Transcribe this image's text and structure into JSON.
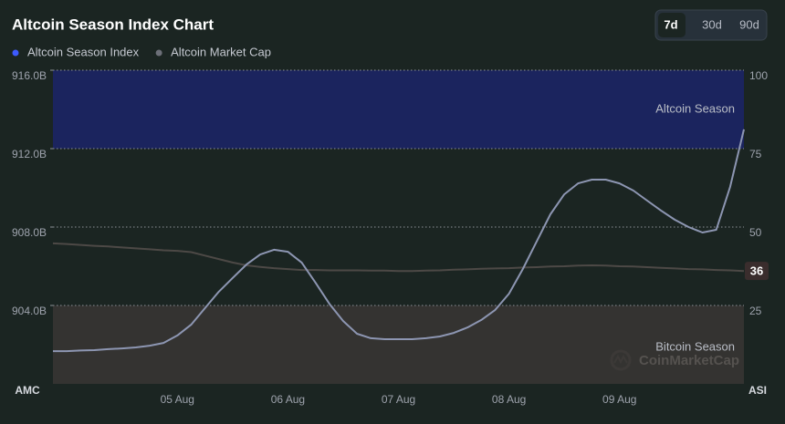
{
  "chart_data": {
    "type": "line",
    "title": "Altcoin Season Index Chart",
    "buttons": [
      "7d",
      "30d",
      "90d"
    ],
    "active_button": 0,
    "y_label": "AMC",
    "y2_label": "ASI",
    "watermark": "CoinMarketCap",
    "categories": [
      null,
      null,
      null,
      null,
      null,
      null,
      null,
      null,
      null,
      "05 Aug",
      null,
      null,
      null,
      null,
      null,
      null,
      null,
      "06 Aug",
      null,
      null,
      null,
      null,
      null,
      null,
      null,
      "07 Aug",
      null,
      null,
      null,
      null,
      null,
      null,
      null,
      "08 Aug",
      null,
      null,
      null,
      null,
      null,
      null,
      null,
      "09 Aug",
      null,
      null,
      null,
      null,
      null,
      null,
      null,
      null,
      null
    ],
    "ylim": [
      900,
      916
    ],
    "yticks": [
      {
        "value": 904,
        "label": "904.0B"
      },
      {
        "value": 908,
        "label": "908.0B"
      },
      {
        "value": 912,
        "label": "912.0B"
      },
      {
        "value": 916,
        "label": "916.0B"
      }
    ],
    "y2lim": [
      0,
      100
    ],
    "y2ticks": [
      25,
      50,
      75,
      100
    ],
    "grid": true,
    "bands": [
      {
        "label": "Altcoin Season",
        "from": 75,
        "to": 100,
        "color": "#1b2468"
      },
      {
        "label": "Bitcoin Season",
        "from": 0,
        "to": 25,
        "color": "#383634"
      }
    ],
    "series": [
      {
        "name": "Altcoin Season Index",
        "color": "#4d4946",
        "marker_color": "#3d5afe",
        "axis": "y2",
        "values": [
          44.8,
          44.6,
          44.3,
          44.0,
          43.8,
          43.5,
          43.2,
          42.9,
          42.6,
          42.4,
          42.0,
          40.9,
          39.8,
          38.7,
          37.8,
          37.3,
          36.9,
          36.6,
          36.3,
          36.3,
          36.2,
          36.2,
          36.2,
          36.1,
          36.1,
          36.0,
          36.0,
          36.1,
          36.2,
          36.4,
          36.5,
          36.7,
          36.8,
          36.9,
          37.1,
          37.2,
          37.4,
          37.5,
          37.7,
          37.8,
          37.7,
          37.5,
          37.4,
          37.2,
          37.0,
          36.8,
          36.6,
          36.5,
          36.3,
          36.2,
          36
        ]
      },
      {
        "name": "Altcoin Market Cap",
        "color": "#8d96b2",
        "marker_color": "#6c6f78",
        "values": [
          901.67,
          901.67,
          901.7,
          901.72,
          901.77,
          901.81,
          901.86,
          901.95,
          902.09,
          902.47,
          903.02,
          903.86,
          904.7,
          905.4,
          906.09,
          906.6,
          906.84,
          906.74,
          906.19,
          905.16,
          904.09,
          903.21,
          902.56,
          902.33,
          902.28,
          902.28,
          902.28,
          902.33,
          902.42,
          902.6,
          902.88,
          903.26,
          903.77,
          904.6,
          905.86,
          907.26,
          908.65,
          909.67,
          910.23,
          910.42,
          910.42,
          910.23,
          909.86,
          909.35,
          908.84,
          908.37,
          908.0,
          907.72,
          907.86,
          910.05,
          912.98
        ]
      }
    ]
  }
}
